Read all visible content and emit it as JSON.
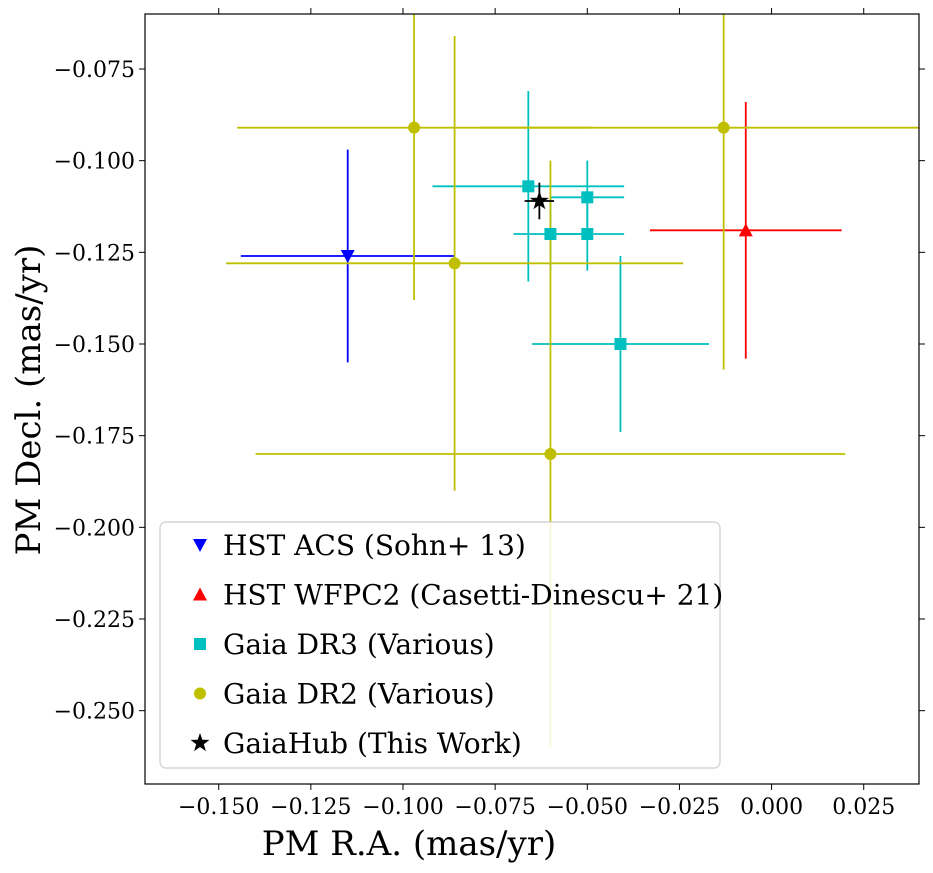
{
  "chart_data": {
    "type": "scatter",
    "title": "",
    "xlabel": "PM R.A. (mas/yr)",
    "ylabel": "PM Decl. (mas/yr)",
    "xlim": [
      -0.17,
      0.04
    ],
    "ylim": [
      -0.27,
      -0.06
    ],
    "xticks": [
      -0.15,
      -0.125,
      -0.1,
      -0.075,
      -0.05,
      -0.025,
      0.0,
      0.025
    ],
    "xtick_labels": [
      "−0.150",
      "−0.125",
      "−0.100",
      "−0.075",
      "−0.050",
      "−0.025",
      "0.000",
      "0.025"
    ],
    "yticks": [
      -0.075,
      -0.1,
      -0.125,
      -0.15,
      -0.175,
      -0.2,
      -0.225,
      -0.25
    ],
    "ytick_labels": [
      "−0.075",
      "−0.100",
      "−0.125",
      "−0.150",
      "−0.175",
      "−0.200",
      "−0.225",
      "−0.250"
    ],
    "grid": false,
    "legend_position": "lower-left",
    "series": [
      {
        "name": "HST ACS (Sohn+ 13)",
        "marker": "triangle-down",
        "color": "#0000ff",
        "points": [
          {
            "x": -0.115,
            "y": -0.126,
            "xerr": 0.029,
            "yerr": 0.029
          }
        ]
      },
      {
        "name": "HST WFPC2 (Casetti-Dinescu+ 21)",
        "marker": "triangle-up",
        "color": "#ff0000",
        "points": [
          {
            "x": -0.007,
            "y": -0.119,
            "xerr": 0.026,
            "yerr": 0.035
          }
        ]
      },
      {
        "name": "Gaia DR3 (Various)",
        "marker": "square",
        "color": "#00bfbf",
        "points": [
          {
            "x": -0.066,
            "y": -0.107,
            "xerr": 0.026,
            "yerr": 0.026
          },
          {
            "x": -0.05,
            "y": -0.11,
            "xerr": 0.01,
            "yerr": 0.01
          },
          {
            "x": -0.06,
            "y": -0.12,
            "xerr": 0.01,
            "yerr": 0.01
          },
          {
            "x": -0.05,
            "y": -0.12,
            "xerr": 0.01,
            "yerr": 0.01
          },
          {
            "x": -0.041,
            "y": -0.15,
            "xerr": 0.024,
            "yerr": 0.024
          }
        ]
      },
      {
        "name": "Gaia DR2 (Various)",
        "marker": "circle",
        "color": "#bfbf00",
        "points": [
          {
            "x": -0.097,
            "y": -0.091,
            "xerr": 0.048,
            "yerr": 0.047
          },
          {
            "x": -0.013,
            "y": -0.091,
            "xerr": 0.066,
            "yerr": 0.066
          },
          {
            "x": -0.086,
            "y": -0.128,
            "xerr": 0.062,
            "yerr": 0.062
          },
          {
            "x": -0.06,
            "y": -0.18,
            "xerr": 0.08,
            "yerr": 0.08
          }
        ]
      },
      {
        "name": "GaiaHub (This Work)",
        "marker": "star",
        "color": "#000000",
        "points": [
          {
            "x": -0.063,
            "y": -0.111,
            "xerr": 0.004,
            "yerr": 0.005
          }
        ]
      }
    ]
  }
}
